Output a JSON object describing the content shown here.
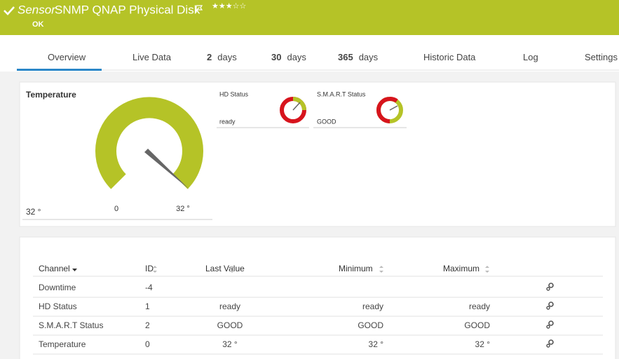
{
  "header": {
    "prefix": "Sensor",
    "title": "SNMP QNAP Physical Disk",
    "status": "OK"
  },
  "tabs": [
    {
      "label": "Overview"
    },
    {
      "label": "Live Data"
    },
    {
      "bold": "2",
      "label": "days"
    },
    {
      "bold": "30",
      "label": "days"
    },
    {
      "bold": "365",
      "label": "days"
    },
    {
      "label": "Historic Data"
    },
    {
      "label": "Log"
    },
    {
      "label": "Settings"
    }
  ],
  "gauges": {
    "temperature": {
      "title": "Temperature",
      "value": "32 °",
      "min": "0",
      "max": "32 °"
    },
    "hd_status": {
      "title": "HD Status",
      "value": "ready"
    },
    "smart_status": {
      "title": "S.M.A.R.T Status",
      "value": "GOOD"
    }
  },
  "table": {
    "columns": [
      "Channel",
      "ID",
      "Last Value",
      "Minimum",
      "Maximum"
    ],
    "rows": [
      [
        "Downtime",
        -4
      ],
      [
        "HD Status",
        1,
        "ready",
        "ready",
        "ready"
      ],
      [
        "S.M.A.R.T Status",
        2,
        "GOOD",
        "GOOD",
        "GOOD"
      ],
      [
        "Temperature",
        0,
        "32 °",
        "32 °",
        "32 °"
      ]
    ]
  }
}
